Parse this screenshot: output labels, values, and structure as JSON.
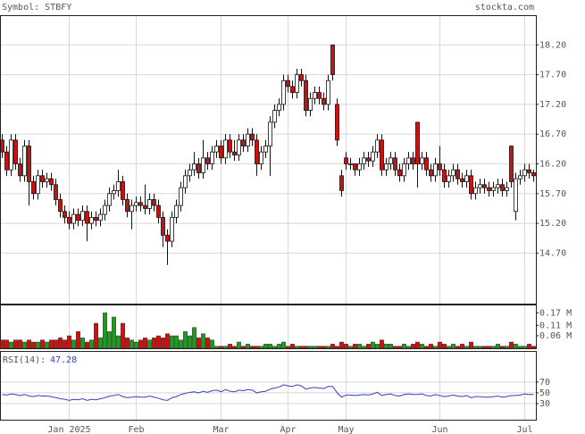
{
  "chart_data": [
    {
      "type": "candlestick",
      "title": "Symbol: STBFY",
      "source": "stockta.com",
      "categories": [
        null,
        null,
        null,
        null,
        null,
        null,
        null,
        null,
        null,
        null,
        null,
        null,
        null,
        null,
        null,
        "Jan 2025",
        null,
        null,
        null,
        null,
        null,
        null,
        null,
        null,
        null,
        null,
        null,
        null,
        null,
        null,
        "Feb",
        null,
        null,
        null,
        null,
        null,
        null,
        null,
        null,
        null,
        null,
        null,
        null,
        null,
        null,
        null,
        null,
        null,
        null,
        "Mar",
        null,
        null,
        null,
        null,
        null,
        null,
        null,
        null,
        null,
        null,
        null,
        null,
        null,
        null,
        "Apr",
        null,
        null,
        null,
        null,
        null,
        null,
        null,
        null,
        null,
        null,
        null,
        null,
        "May",
        null,
        null,
        null,
        null,
        null,
        null,
        null,
        null,
        null,
        null,
        null,
        null,
        null,
        null,
        null,
        null,
        null,
        null,
        null,
        null,
        "Jun",
        null,
        null,
        null,
        null,
        null,
        null,
        null,
        null,
        null,
        null,
        null,
        null,
        null,
        null,
        null,
        null,
        null,
        null,
        "Jul",
        null,
        null
      ],
      "open": [
        16.6,
        16.4,
        16.1,
        16.6,
        16.2,
        16.0,
        16.5,
        15.9,
        15.7,
        16.0,
        15.9,
        15.95,
        15.85,
        15.6,
        15.4,
        15.3,
        15.2,
        15.35,
        15.25,
        15.4,
        15.2,
        15.3,
        15.25,
        15.35,
        15.5,
        15.7,
        15.75,
        15.9,
        15.6,
        15.4,
        15.5,
        15.55,
        15.5,
        15.45,
        15.6,
        15.5,
        15.3,
        15.0,
        14.9,
        15.3,
        15.5,
        15.8,
        16.0,
        16.1,
        16.2,
        16.05,
        16.3,
        16.2,
        16.4,
        16.5,
        16.3,
        16.6,
        16.4,
        16.35,
        16.6,
        16.5,
        16.7,
        16.6,
        16.2,
        16.4,
        16.5,
        16.9,
        17.1,
        17.2,
        17.6,
        17.5,
        17.4,
        17.7,
        17.6,
        17.1,
        17.3,
        17.4,
        17.3,
        17.2,
        18.2,
        17.2,
        16.0,
        16.3,
        16.2,
        16.2,
        16.1,
        16.2,
        16.3,
        16.25,
        16.4,
        16.6,
        16.1,
        16.2,
        16.3,
        16.1,
        16.0,
        16.2,
        16.3,
        16.9,
        16.2,
        16.3,
        16.1,
        16.0,
        16.2,
        16.1,
        15.9,
        16.0,
        16.1,
        15.95,
        15.9,
        16.0,
        15.7,
        15.8,
        15.85,
        15.8,
        15.75,
        15.8,
        15.85,
        15.75,
        16.5,
        15.4,
        15.95,
        16.0,
        16.1,
        16.05
      ],
      "high": [
        16.7,
        16.5,
        16.7,
        16.7,
        16.3,
        16.6,
        16.6,
        16.0,
        16.1,
        16.1,
        16.05,
        16.05,
        15.95,
        15.7,
        15.5,
        15.4,
        15.45,
        15.45,
        15.5,
        15.5,
        15.4,
        15.4,
        15.45,
        15.6,
        15.8,
        15.85,
        16.1,
        16.0,
        15.7,
        15.6,
        15.65,
        15.65,
        15.85,
        15.7,
        15.7,
        15.6,
        15.4,
        15.1,
        15.4,
        15.6,
        15.9,
        16.1,
        16.2,
        16.4,
        16.3,
        16.6,
        16.4,
        16.5,
        16.6,
        16.6,
        16.7,
        16.7,
        16.6,
        16.7,
        16.7,
        16.8,
        16.8,
        16.7,
        16.5,
        16.6,
        17.0,
        17.2,
        17.3,
        17.7,
        17.7,
        17.6,
        17.8,
        17.8,
        17.7,
        17.4,
        17.5,
        17.5,
        17.4,
        17.7,
        18.2,
        17.3,
        16.1,
        16.4,
        16.3,
        16.2,
        16.3,
        16.4,
        16.4,
        16.5,
        16.7,
        16.7,
        16.3,
        16.4,
        16.4,
        16.2,
        16.3,
        16.4,
        16.4,
        16.9,
        16.4,
        16.4,
        16.2,
        16.3,
        16.5,
        16.2,
        16.1,
        16.2,
        16.2,
        16.05,
        16.1,
        16.1,
        15.9,
        15.95,
        15.95,
        15.9,
        15.9,
        15.95,
        15.95,
        15.9,
        16.5,
        16.05,
        16.1,
        16.2,
        16.2,
        16.1
      ],
      "low": [
        16.3,
        16.0,
        16.0,
        16.1,
        15.9,
        15.9,
        15.5,
        15.6,
        15.6,
        15.8,
        15.8,
        15.75,
        15.5,
        15.3,
        15.2,
        15.1,
        15.1,
        15.15,
        15.15,
        14.9,
        15.1,
        15.15,
        15.15,
        15.25,
        15.4,
        15.6,
        15.65,
        15.5,
        15.3,
        15.1,
        15.4,
        15.4,
        15.35,
        15.35,
        15.4,
        15.2,
        14.8,
        14.5,
        14.8,
        15.2,
        15.4,
        15.7,
        15.9,
        16.0,
        15.95,
        15.95,
        16.1,
        16.1,
        16.3,
        16.2,
        16.2,
        16.3,
        16.25,
        16.25,
        16.4,
        16.4,
        16.5,
        16.0,
        16.1,
        16.3,
        16.0,
        16.8,
        17.0,
        17.1,
        17.4,
        17.3,
        17.3,
        17.5,
        17.0,
        17.0,
        17.2,
        17.2,
        17.1,
        17.1,
        17.6,
        16.5,
        15.65,
        16.1,
        16.1,
        16.0,
        16.0,
        16.1,
        16.15,
        16.15,
        16.3,
        16.0,
        16.0,
        16.1,
        16.0,
        15.9,
        15.9,
        16.1,
        16.1,
        15.8,
        16.1,
        16.0,
        15.9,
        15.9,
        16.0,
        15.8,
        15.8,
        15.9,
        15.85,
        15.8,
        15.8,
        15.6,
        15.6,
        15.7,
        15.7,
        15.65,
        15.65,
        15.7,
        15.65,
        15.65,
        15.8,
        15.25,
        15.85,
        15.9,
        15.95,
        15.9
      ],
      "close": [
        16.4,
        16.1,
        16.6,
        16.2,
        16.0,
        16.5,
        15.9,
        15.7,
        16.0,
        15.9,
        15.95,
        15.85,
        15.6,
        15.4,
        15.3,
        15.2,
        15.35,
        15.25,
        15.4,
        15.2,
        15.3,
        15.25,
        15.35,
        15.5,
        15.7,
        15.75,
        15.9,
        15.6,
        15.4,
        15.5,
        15.55,
        15.5,
        15.45,
        15.6,
        15.5,
        15.3,
        15.0,
        14.9,
        15.3,
        15.5,
        15.8,
        16.0,
        16.1,
        16.2,
        16.05,
        16.3,
        16.2,
        16.4,
        16.5,
        16.3,
        16.6,
        16.4,
        16.35,
        16.6,
        16.5,
        16.7,
        16.6,
        16.2,
        16.4,
        16.5,
        16.9,
        17.1,
        17.2,
        17.6,
        17.5,
        17.4,
        17.7,
        17.6,
        17.1,
        17.3,
        17.4,
        17.3,
        17.2,
        17.6,
        17.7,
        16.6,
        15.75,
        16.2,
        16.2,
        16.1,
        16.2,
        16.3,
        16.25,
        16.4,
        16.6,
        16.1,
        16.2,
        16.3,
        16.1,
        16.0,
        16.2,
        16.3,
        16.2,
        16.2,
        16.3,
        16.1,
        16.0,
        16.2,
        16.1,
        15.9,
        16.0,
        16.1,
        15.95,
        15.9,
        16.0,
        15.7,
        15.8,
        15.85,
        15.8,
        15.75,
        15.8,
        15.85,
        15.75,
        15.8,
        15.9,
        15.95,
        16.0,
        16.1,
        16.05,
        16.0
      ],
      "up_color": "#ffffff",
      "down_color": "#cc1111",
      "ylim": [
        13.85,
        18.7
      ],
      "yticks": [
        {
          "value": 18.2,
          "label": "18.20"
        },
        {
          "value": 17.7,
          "label": "17.70"
        },
        {
          "value": 17.2,
          "label": "17.20"
        },
        {
          "value": 16.7,
          "label": "16.70"
        },
        {
          "value": 16.2,
          "label": "16.20"
        },
        {
          "value": 15.7,
          "label": "15.70"
        },
        {
          "value": 15.2,
          "label": "15.20"
        },
        {
          "value": 14.7,
          "label": "14.70"
        }
      ],
      "grid": true
    },
    {
      "type": "bar",
      "values": [
        0.04,
        0.04,
        0.03,
        0.04,
        0.04,
        0.03,
        0.04,
        0.03,
        0.03,
        0.04,
        0.03,
        0.04,
        0.04,
        0.05,
        0.04,
        0.06,
        0.04,
        0.08,
        0.05,
        0.03,
        0.04,
        0.12,
        0.05,
        0.17,
        0.08,
        0.15,
        0.06,
        0.12,
        0.05,
        0.04,
        0.03,
        0.04,
        0.05,
        0.04,
        0.05,
        0.06,
        0.05,
        0.07,
        0.06,
        0.06,
        0.04,
        0.08,
        0.06,
        0.1,
        0.05,
        0.07,
        0.05,
        0.04,
        0.01,
        0.01,
        0.01,
        0.02,
        0.01,
        0.03,
        0.01,
        0.02,
        0.01,
        0.01,
        0.01,
        0.02,
        0.02,
        0.01,
        0.02,
        0.03,
        0.01,
        0.02,
        0.01,
        0.01,
        0.01,
        0.01,
        0.01,
        0.01,
        0.01,
        0.01,
        0.02,
        0.01,
        0.03,
        0.02,
        0.01,
        0.02,
        0.02,
        0.01,
        0.02,
        0.03,
        0.02,
        0.04,
        0.02,
        0.02,
        0.01,
        0.01,
        0.02,
        0.01,
        0.02,
        0.03,
        0.02,
        0.01,
        0.02,
        0.01,
        0.03,
        0.02,
        0.01,
        0.02,
        0.01,
        0.02,
        0.01,
        0.03,
        0.01,
        0.01,
        0.01,
        0.01,
        0.01,
        0.02,
        0.01,
        0.01,
        0.03,
        0.02,
        0.01,
        0.01,
        0.02,
        0.01
      ],
      "up_color": "#229922",
      "down_color": "#cc1111",
      "ylim": [
        0,
        0.21
      ],
      "yticks": [
        {
          "value": 0.17,
          "label": "0.17 M"
        },
        {
          "value": 0.11,
          "label": "0.11 M"
        },
        {
          "value": 0.06,
          "label": "0.06 M"
        }
      ]
    },
    {
      "type": "line",
      "label": "RSI(14):",
      "last_value": 47.28,
      "color": "#3344bb",
      "values": [
        47,
        46,
        48,
        47,
        45,
        47,
        44,
        43,
        45,
        44,
        44,
        43,
        41,
        39,
        38,
        36,
        38,
        37,
        39,
        36,
        38,
        37,
        39,
        41,
        44,
        45,
        47,
        43,
        41,
        42,
        43,
        42,
        42,
        44,
        42,
        40,
        37,
        36,
        41,
        43,
        47,
        49,
        51,
        52,
        50,
        53,
        51,
        54,
        55,
        52,
        56,
        53,
        52,
        55,
        54,
        56,
        55,
        50,
        52,
        53,
        57,
        59,
        61,
        65,
        63,
        62,
        65,
        63,
        57,
        59,
        60,
        59,
        58,
        62,
        62,
        50,
        42,
        46,
        46,
        45,
        46,
        47,
        46,
        48,
        51,
        45,
        47,
        48,
        45,
        44,
        47,
        48,
        47,
        47,
        48,
        45,
        44,
        47,
        45,
        43,
        44,
        46,
        44,
        43,
        45,
        41,
        43,
        43,
        42,
        42,
        43,
        44,
        42,
        43,
        45,
        45,
        46,
        48,
        47,
        47
      ],
      "ylim": [
        0,
        128
      ],
      "yticks": [
        70,
        50,
        30
      ]
    }
  ]
}
